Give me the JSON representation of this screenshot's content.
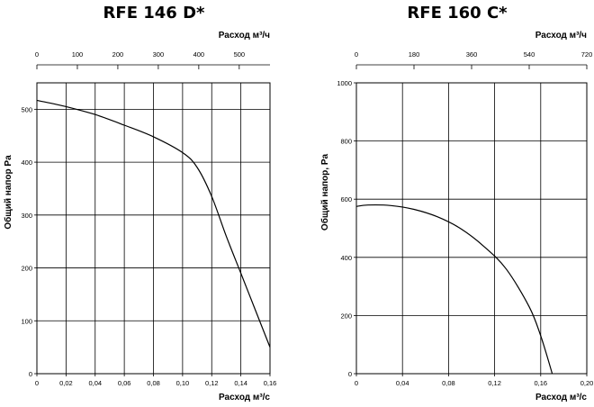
{
  "header_fragment": "",
  "chart_data": [
    {
      "type": "line",
      "title": "RFE 146 D*",
      "xlabel": "Расход м³/с",
      "ylabel": "Общий напор Pa",
      "top_xlabel": "Расход м³/ч",
      "xlim": [
        0,
        0.16
      ],
      "ylim": [
        0,
        550
      ],
      "xticks": [
        "0",
        "0,02",
        "0,04",
        "0,06",
        "0,08",
        "0,10",
        "0,12",
        "0,14",
        "0,16"
      ],
      "xtick_values": [
        0,
        0.02,
        0.04,
        0.06,
        0.08,
        0.1,
        0.12,
        0.14,
        0.16
      ],
      "yticks": [
        "0",
        "100",
        "200",
        "300",
        "400",
        "500"
      ],
      "ytick_values": [
        0,
        100,
        200,
        300,
        400,
        500
      ],
      "top_xlim": [
        0,
        576
      ],
      "top_xticks": [
        "0",
        "100",
        "200",
        "300",
        "400",
        "500"
      ],
      "top_xtick_values": [
        0,
        100,
        200,
        300,
        400,
        500
      ],
      "grid": true,
      "series": [
        {
          "x": [
            0,
            0.02,
            0.04,
            0.06,
            0.08,
            0.1,
            0.11,
            0.12,
            0.13,
            0.14,
            0.15,
            0.16
          ],
          "y": [
            517,
            505,
            490,
            470,
            448,
            418,
            390,
            335,
            260,
            190,
            120,
            50
          ]
        }
      ]
    },
    {
      "type": "line",
      "title": "RFE 160 C*",
      "xlabel": "Расход м³/с",
      "ylabel": "Общий напор, Pa",
      "top_xlabel": "Расход м³/ч",
      "xlim": [
        0,
        0.2
      ],
      "ylim": [
        0,
        1000
      ],
      "xticks": [
        "0",
        "0,04",
        "0,08",
        "0,12",
        "0,16",
        "0,20"
      ],
      "xtick_values": [
        0,
        0.04,
        0.08,
        0.12,
        0.16,
        0.2
      ],
      "yticks": [
        "0",
        "200",
        "400",
        "600",
        "800",
        "1000"
      ],
      "ytick_values": [
        0,
        200,
        400,
        600,
        800,
        1000
      ],
      "top_xlim": [
        0,
        720
      ],
      "top_xticks": [
        "0",
        "180",
        "360",
        "540",
        "720"
      ],
      "top_xtick_values": [
        0,
        180,
        360,
        540,
        720
      ],
      "grid": true,
      "series": [
        {
          "x": [
            0,
            0.01,
            0.03,
            0.05,
            0.07,
            0.09,
            0.11,
            0.13,
            0.15,
            0.16,
            0.17
          ],
          "y": [
            575,
            580,
            578,
            565,
            540,
            500,
            440,
            360,
            230,
            130,
            0
          ]
        }
      ]
    }
  ]
}
